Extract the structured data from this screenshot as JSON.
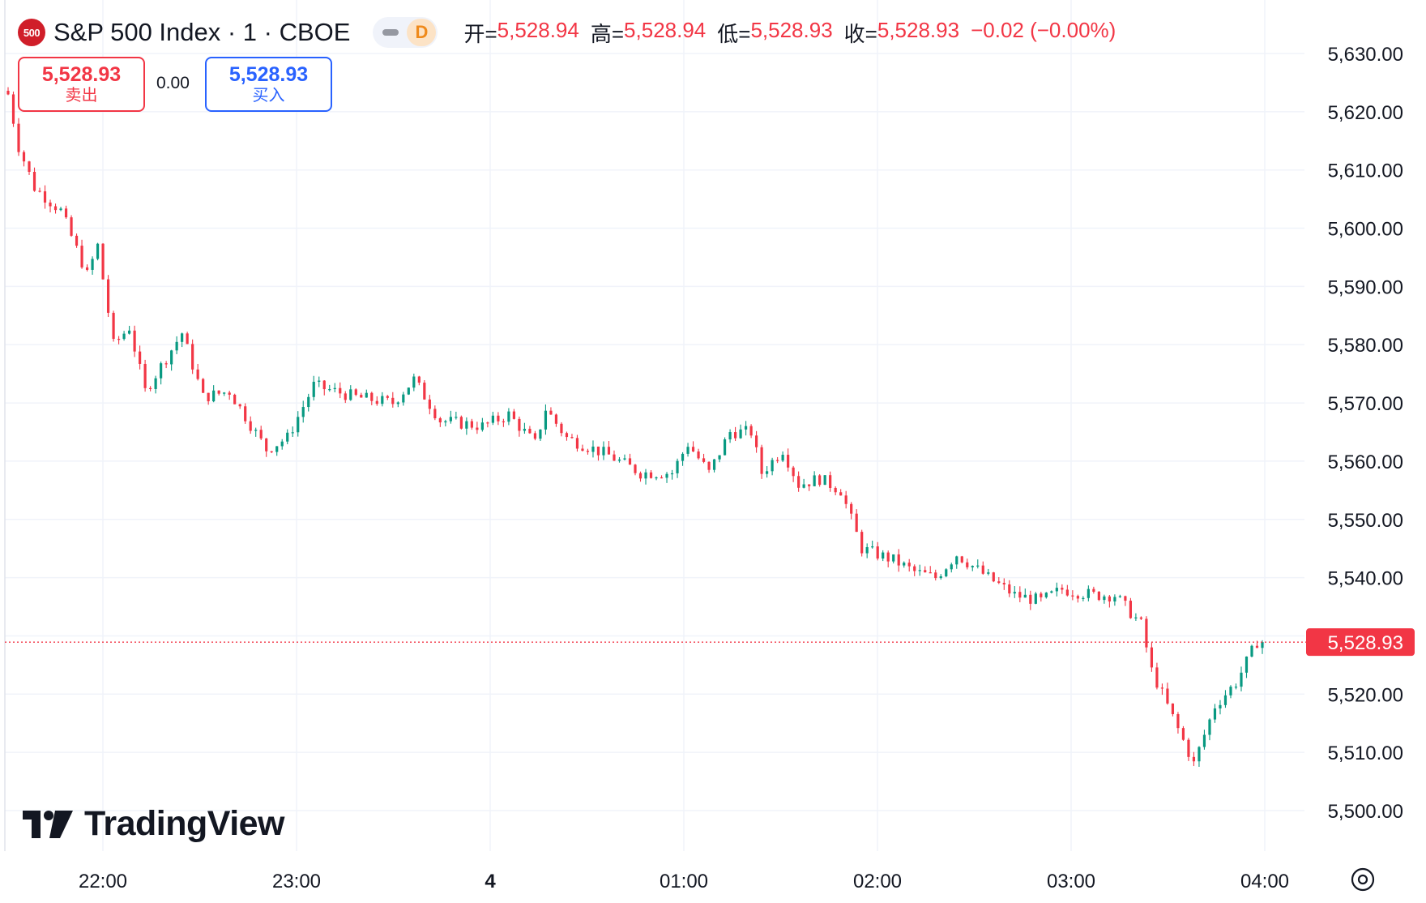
{
  "header": {
    "symbol_badge": "500",
    "title": "S&P 500 Index · 1 · CBOE",
    "interval_badge": "D",
    "open_label": "开=",
    "open_value": "5,528.94",
    "high_label": "高=",
    "high_value": "5,528.94",
    "low_label": "低=",
    "low_value": "5,528.93",
    "close_label": "收=",
    "close_value": "5,528.93",
    "change": "−0.02 (−0.00%)"
  },
  "trade": {
    "sell_price": "5,528.93",
    "sell_label": "卖出",
    "spread": "0.00",
    "buy_price": "5,528.93",
    "buy_label": "买入"
  },
  "brand": {
    "name": "TradingView"
  },
  "colors": {
    "up": "#089981",
    "down": "#f23645",
    "grid": "#f0f3fa",
    "text": "#131722",
    "buy": "#2962ff"
  },
  "chart_data": {
    "type": "candlestick",
    "interval": "1 minute",
    "y_range": [
      5496,
      5636
    ],
    "y_ticks": [
      "5,630.00",
      "5,620.00",
      "5,610.00",
      "5,600.00",
      "5,590.00",
      "5,580.00",
      "5,570.00",
      "5,560.00",
      "5,550.00",
      "5,540.00",
      "5,530.00",
      "5,520.00",
      "5,510.00",
      "5,500.00"
    ],
    "x_ticks": [
      "22:00",
      "23:00",
      "4",
      "01:00",
      "02:00",
      "03:00",
      "04:00"
    ],
    "last_price": 5528.93,
    "last_price_label": "5,528.93",
    "grid": true,
    "close_path": [
      {
        "t": 0,
        "c": 5623
      },
      {
        "t": 2,
        "c": 5614
      },
      {
        "t": 5,
        "c": 5607
      },
      {
        "t": 10,
        "c": 5603
      },
      {
        "t": 15,
        "c": 5592
      },
      {
        "t": 17,
        "c": 5597
      },
      {
        "t": 20,
        "c": 5580
      },
      {
        "t": 23,
        "c": 5583
      },
      {
        "t": 26,
        "c": 5572
      },
      {
        "t": 33,
        "c": 5582
      },
      {
        "t": 37,
        "c": 5571
      },
      {
        "t": 42,
        "c": 5572
      },
      {
        "t": 49,
        "c": 5562
      },
      {
        "t": 53,
        "c": 5564
      },
      {
        "t": 58,
        "c": 5573
      },
      {
        "t": 66,
        "c": 5571
      },
      {
        "t": 73,
        "c": 5570
      },
      {
        "t": 77,
        "c": 5574
      },
      {
        "t": 82,
        "c": 5567
      },
      {
        "t": 90,
        "c": 5566
      },
      {
        "t": 95,
        "c": 5568
      },
      {
        "t": 100,
        "c": 5563
      },
      {
        "t": 102,
        "c": 5569
      },
      {
        "t": 106,
        "c": 5564
      },
      {
        "t": 114,
        "c": 5561
      },
      {
        "t": 120,
        "c": 5558
      },
      {
        "t": 126,
        "c": 5558
      },
      {
        "t": 129,
        "c": 5563
      },
      {
        "t": 133,
        "c": 5558
      },
      {
        "t": 137,
        "c": 5565
      },
      {
        "t": 141,
        "c": 5565
      },
      {
        "t": 143,
        "c": 5558
      },
      {
        "t": 147,
        "c": 5562
      },
      {
        "t": 150,
        "c": 5556
      },
      {
        "t": 154,
        "c": 5557
      },
      {
        "t": 158,
        "c": 5555
      },
      {
        "t": 162,
        "c": 5545
      },
      {
        "t": 168,
        "c": 5543
      },
      {
        "t": 172,
        "c": 5541
      },
      {
        "t": 176,
        "c": 5540
      },
      {
        "t": 180,
        "c": 5544
      },
      {
        "t": 186,
        "c": 5540
      },
      {
        "t": 191,
        "c": 5537
      },
      {
        "t": 196,
        "c": 5536
      },
      {
        "t": 200,
        "c": 5538
      },
      {
        "t": 206,
        "c": 5537
      },
      {
        "t": 210,
        "c": 5537
      },
      {
        "t": 215,
        "c": 5532
      },
      {
        "t": 217,
        "c": 5524
      },
      {
        "t": 221,
        "c": 5516
      },
      {
        "t": 225,
        "c": 5508
      },
      {
        "t": 229,
        "c": 5518
      },
      {
        "t": 233,
        "c": 5522
      },
      {
        "t": 237,
        "c": 5529
      }
    ]
  }
}
